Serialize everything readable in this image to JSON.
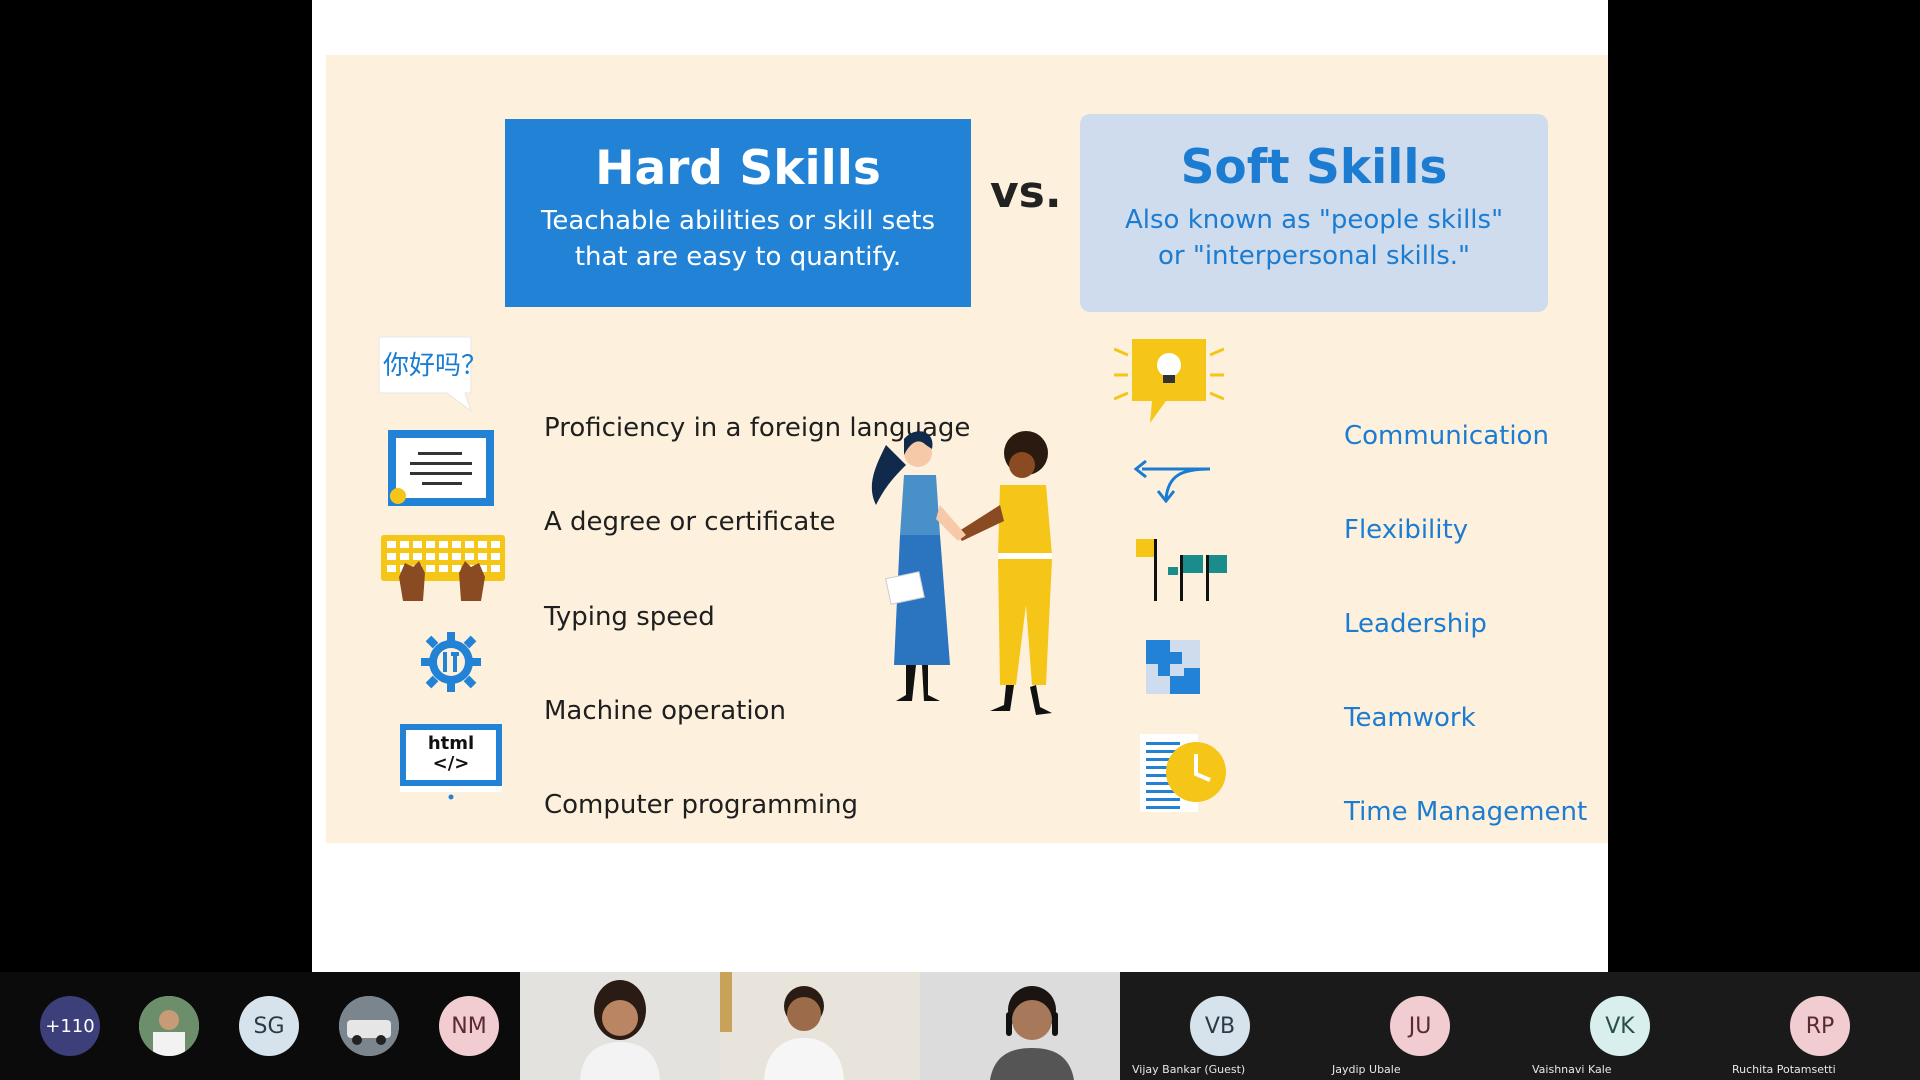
{
  "slide": {
    "hard": {
      "title": "Hard Skills",
      "subtitle_line1": "Teachable abilities or skill sets",
      "subtitle_line2": "that are easy to quantify."
    },
    "vs": "vs.",
    "soft": {
      "title": "Soft Skills",
      "subtitle_line1": "Also known as \"people skills\"",
      "subtitle_line2": "or \"interpersonal skills.\""
    },
    "hard_skills": [
      {
        "label": "Proficiency in a foreign language",
        "icon": "speech-bubble-chinese-icon",
        "icon_text": "你好吗？"
      },
      {
        "label": "A degree or certificate",
        "icon": "certificate-icon"
      },
      {
        "label": "Typing speed",
        "icon": "keyboard-hands-icon"
      },
      {
        "label": "Machine operation",
        "icon": "gear-tools-icon"
      },
      {
        "label": "Computer programming",
        "icon": "html-monitor-icon",
        "icon_text_line1": "html",
        "icon_text_line2": "</>"
      }
    ],
    "soft_skills": [
      {
        "label": "Communication",
        "icon": "lightbulb-speech-icon"
      },
      {
        "label": "Flexibility",
        "icon": "arrows-icon"
      },
      {
        "label": "Leadership",
        "icon": "flags-icon"
      },
      {
        "label": "Teamwork",
        "icon": "puzzle-icon"
      },
      {
        "label": "Time Management",
        "icon": "clock-document-icon"
      }
    ],
    "colors": {
      "hard_blue": "#2283d6",
      "soft_blue_bg": "#cfdcee",
      "soft_text": "#1b7cd1",
      "cream": "#fdf1de",
      "yellow": "#f5c518",
      "teal": "#1a8c8c"
    }
  },
  "participants": {
    "overflow_count": "+110",
    "tiles": [
      {
        "initials": "SG"
      },
      {
        "initials": "NM"
      },
      {
        "initials": "VB",
        "name": "Vijay Bankar (Guest)"
      },
      {
        "initials": "JU",
        "name": "Jaydip Ubale"
      },
      {
        "initials": "VK",
        "name": "Vaishnavi Kale"
      },
      {
        "initials": "RP",
        "name": "Ruchita Potamsetti"
      }
    ]
  }
}
